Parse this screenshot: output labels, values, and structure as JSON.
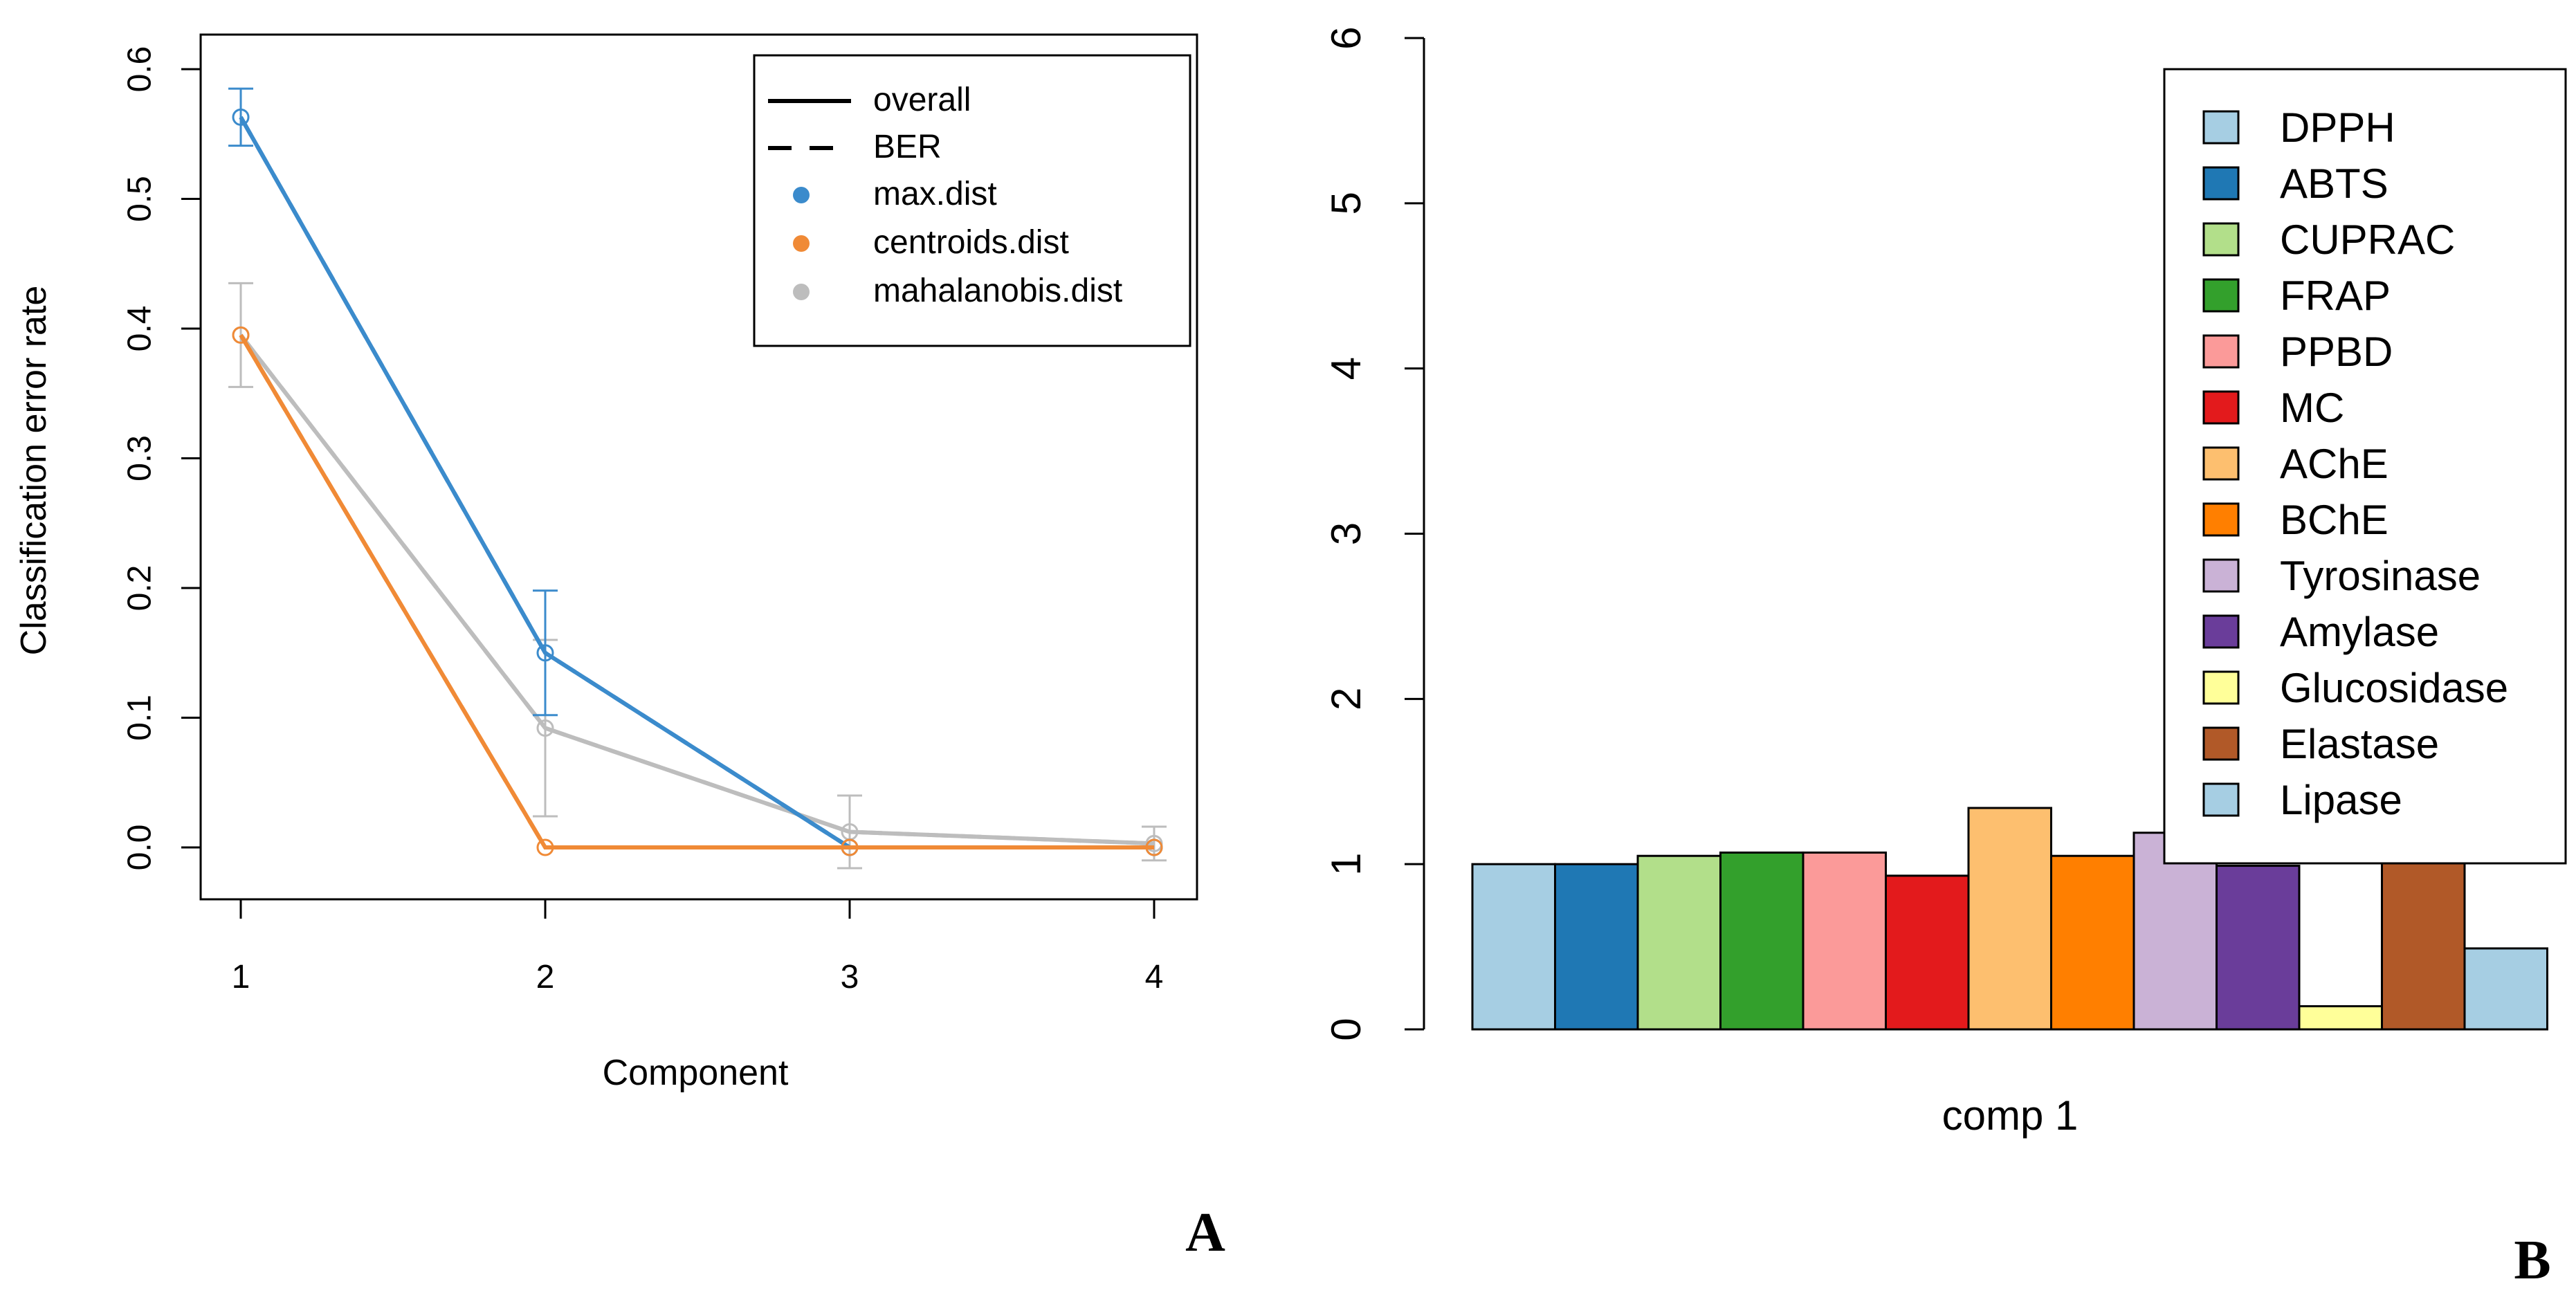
{
  "chart_data": [
    {
      "type": "line",
      "panel_label": "A",
      "xlabel": "Component",
      "ylabel": "Classification error rate",
      "x": [
        1,
        2,
        3,
        4
      ],
      "xlim": [
        1,
        4
      ],
      "ylim": [
        0,
        0.6
      ],
      "yticks": [
        "0.0",
        "0.1",
        "0.2",
        "0.3",
        "0.4",
        "0.5",
        "0.6"
      ],
      "xticks": [
        "1",
        "2",
        "3",
        "4"
      ],
      "legend_position": "top-right",
      "legend": [
        {
          "label": "overall",
          "style": "solid"
        },
        {
          "label": "BER",
          "style": "dashed"
        },
        {
          "label": "max.dist",
          "color": "#3b8bcc"
        },
        {
          "label": "centroids.dist",
          "color": "#f08a36"
        },
        {
          "label": "mahalanobis.dist",
          "color": "#bdbdbd"
        }
      ],
      "series": [
        {
          "name": "max.dist",
          "color": "#3b8bcc",
          "values": [
            0.563,
            0.15,
            0.0,
            0.0
          ],
          "err": [
            0.022,
            0.048,
            0,
            0
          ]
        },
        {
          "name": "centroids.dist",
          "color": "#f08a36",
          "values": [
            0.395,
            0.0,
            0.0,
            0.0
          ],
          "err": [
            0,
            0,
            0,
            0
          ]
        },
        {
          "name": "mahalanobis.dist",
          "color": "#bdbdbd",
          "values": [
            0.395,
            0.092,
            0.012,
            0.003
          ],
          "err": [
            0.04,
            0.068,
            0.028,
            0.013
          ]
        }
      ]
    },
    {
      "type": "bar",
      "panel_label": "B",
      "xlabel": "comp 1",
      "ylim": [
        0,
        6
      ],
      "yticks": [
        "0",
        "1",
        "2",
        "3",
        "4",
        "5",
        "6"
      ],
      "legend_position": "top-right",
      "categories": [
        "DPPH",
        "ABTS",
        "CUPRAC",
        "FRAP",
        "PPBD",
        "MC",
        "AChE",
        "BChE",
        "Tyrosinase",
        "Amylase",
        "Glucosidase",
        "Elastase",
        "Lipase"
      ],
      "values": [
        1.0,
        1.0,
        1.05,
        1.07,
        1.07,
        0.93,
        1.34,
        1.05,
        1.19,
        0.99,
        0.14,
        1.13,
        0.49
      ],
      "colors": [
        "#a6cee3",
        "#1f78b4",
        "#b2df8a",
        "#33a02c",
        "#fb9a99",
        "#e31a1c",
        "#fdbf6f",
        "#ff7f00",
        "#cab2d6",
        "#6a3d9a",
        "#ffff99",
        "#b15928",
        "#a6cee3"
      ]
    }
  ]
}
